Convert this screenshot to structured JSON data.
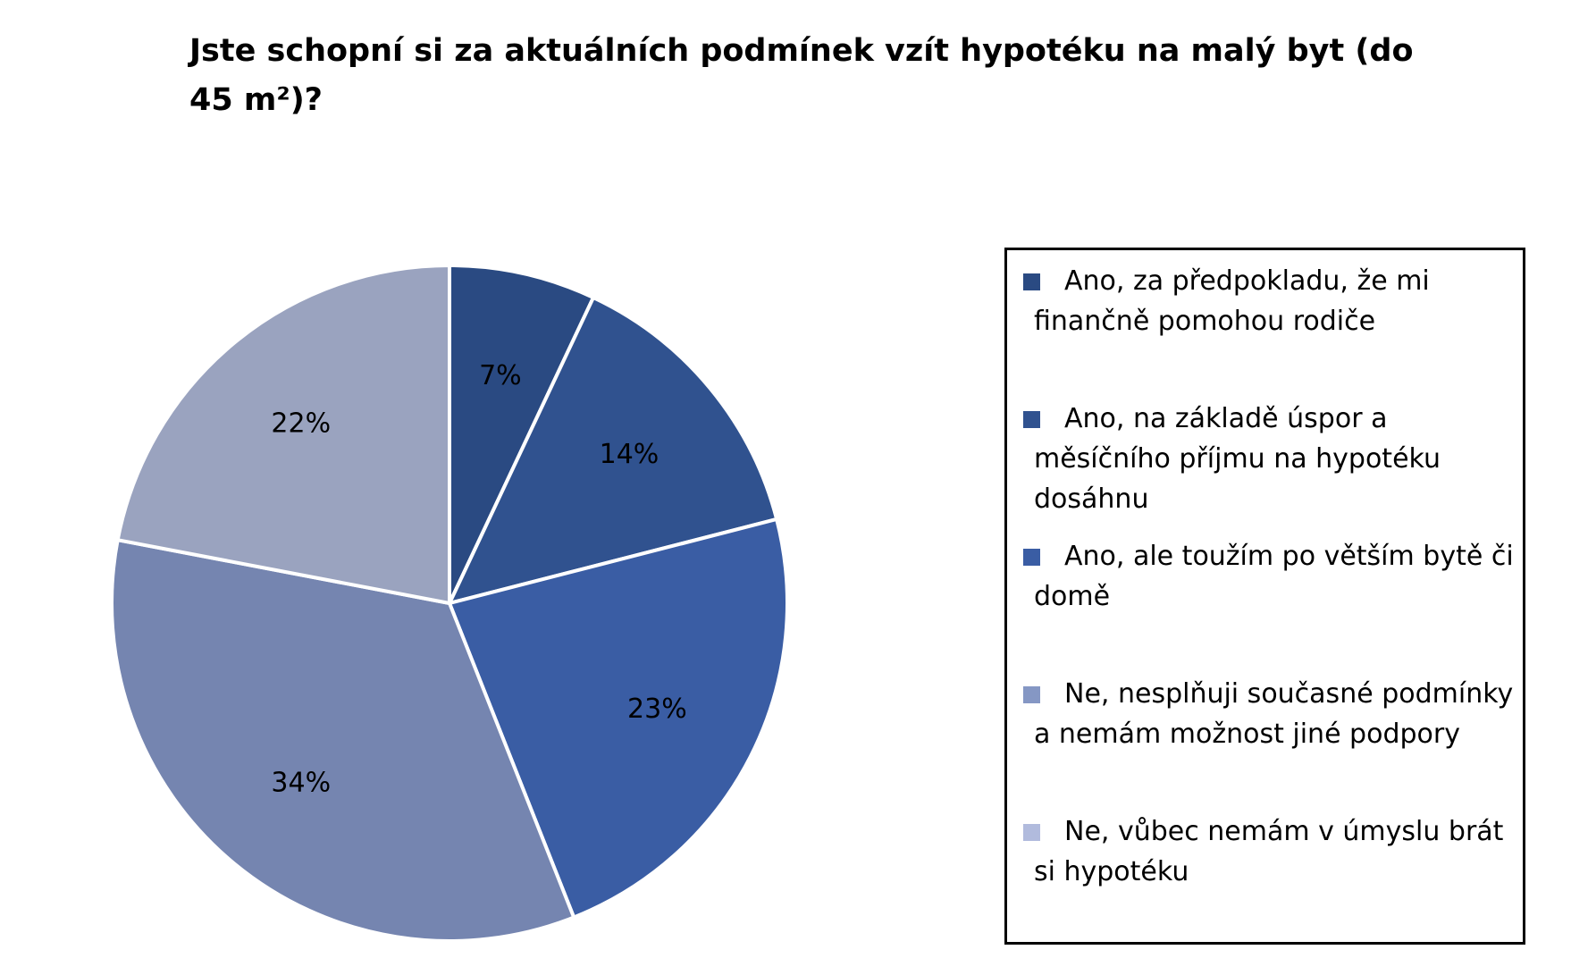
{
  "chart_data": {
    "type": "pie",
    "title": "Jste schopní si za aktuálních podmínek vzít hypotéku na malý byt (do 45 m²)?",
    "categories": [
      "Ano, za předpokladu, že mi finančně pomohou rodiče",
      "Ano, na základě úspor a měsíčního příjmu na hypotéku dosáhnu",
      "Ano, ale toužím po větším bytě či domě",
      "Ne, nesplňuji současné podmínky a nemám možnost jiné podpory",
      "Ne, vůbec nemám v úmyslu brát si hypotéku"
    ],
    "values": [
      7,
      14,
      23,
      34,
      22
    ],
    "data_labels": [
      "7%",
      "14%",
      "23%",
      "34%",
      "22%"
    ],
    "slice_colors": [
      "#2a4a82",
      "#30528f",
      "#3a5da4",
      "#7585b0",
      "#9aa3bf"
    ],
    "legend_colors": [
      "#2a4a82",
      "#30528f",
      "#3a5da4",
      "#8597c4",
      "#b1bbdd"
    ],
    "legend_position": "right"
  }
}
